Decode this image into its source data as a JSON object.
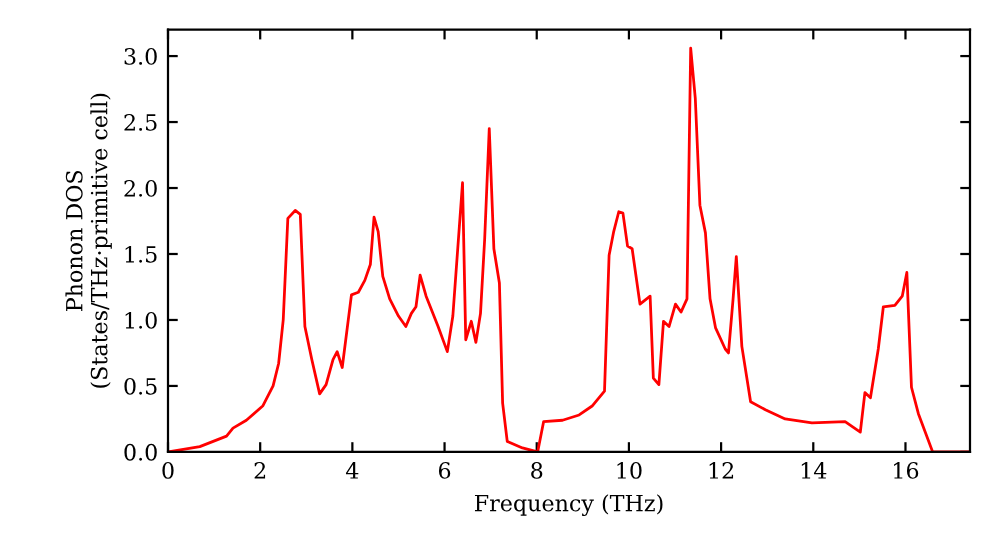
{
  "chart_data": {
    "type": "line",
    "xlabel": "Frequency (THz)",
    "ylabel": "Phonon DOS\n(States/THz·primitive cell)",
    "xlim": [
      0,
      17.4
    ],
    "ylim": [
      0,
      3.2
    ],
    "xticks": [
      0,
      2,
      4,
      6,
      8,
      10,
      12,
      14,
      16
    ],
    "yticks": [
      {
        "value": 0,
        "label": "0.0"
      },
      {
        "value": 0.5,
        "label": "0.5"
      },
      {
        "value": 1,
        "label": "1.0"
      },
      {
        "value": 1.5,
        "label": "1.5"
      },
      {
        "value": 2,
        "label": "2.0"
      },
      {
        "value": 2.5,
        "label": "2.5"
      },
      {
        "value": 3,
        "label": "3.0"
      }
    ],
    "marker": "none",
    "line_style": "solid",
    "series": [
      {
        "color": "#ff0000",
        "x": [
          0,
          0.69,
          1.27,
          1.41,
          1.7,
          2.06,
          2.28,
          2.4,
          2.5,
          2.6,
          2.76,
          2.87,
          2.97,
          3.12,
          3.29,
          3.43,
          3.58,
          3.67,
          3.78,
          3.98,
          4.13,
          4.27,
          4.39,
          4.47,
          4.56,
          4.66,
          4.81,
          5.0,
          5.16,
          5.28,
          5.38,
          5.47,
          5.6,
          5.86,
          6.06,
          6.18,
          6.39,
          6.46,
          6.58,
          6.68,
          6.78,
          6.87,
          6.97,
          7.07,
          7.19,
          7.26,
          7.36,
          7.69,
          8.02,
          8.15,
          8.56,
          8.92,
          9.21,
          9.47,
          9.57,
          9.67,
          9.78,
          9.87,
          9.97,
          10.07,
          10.24,
          10.46,
          10.53,
          10.65,
          10.75,
          10.87,
          11.01,
          11.13,
          11.26,
          11.34,
          11.44,
          11.54,
          11.66,
          11.76,
          11.88,
          12.09,
          12.16,
          12.26,
          12.33,
          12.45,
          12.64,
          12.96,
          13.39,
          13.97,
          14.69,
          15.02,
          15.12,
          15.24,
          15.41,
          15.52,
          15.77,
          15.93,
          16.03,
          16.13,
          16.28,
          16.59,
          17.4
        ],
        "values": [
          0,
          0.04,
          0.12,
          0.18,
          0.24,
          0.35,
          0.5,
          0.67,
          1.0,
          1.77,
          1.83,
          1.8,
          0.95,
          0.7,
          0.44,
          0.51,
          0.7,
          0.76,
          0.64,
          1.19,
          1.21,
          1.3,
          1.42,
          1.78,
          1.67,
          1.33,
          1.16,
          1.03,
          0.95,
          1.05,
          1.1,
          1.34,
          1.18,
          0.95,
          0.76,
          1.03,
          2.04,
          0.85,
          0.99,
          0.83,
          1.05,
          1.61,
          2.45,
          1.54,
          1.28,
          0.37,
          0.08,
          0.03,
          0.0,
          0.23,
          0.24,
          0.28,
          0.35,
          0.46,
          1.49,
          1.67,
          1.82,
          1.81,
          1.56,
          1.54,
          1.12,
          1.18,
          0.56,
          0.51,
          0.99,
          0.95,
          1.12,
          1.06,
          1.16,
          3.06,
          2.68,
          1.87,
          1.66,
          1.16,
          0.94,
          0.78,
          0.75,
          1.16,
          1.48,
          0.8,
          0.38,
          0.32,
          0.25,
          0.22,
          0.23,
          0.15,
          0.45,
          0.41,
          0.78,
          1.1,
          1.11,
          1.18,
          1.36,
          0.49,
          0.29,
          0.0,
          0.0
        ]
      }
    ]
  }
}
